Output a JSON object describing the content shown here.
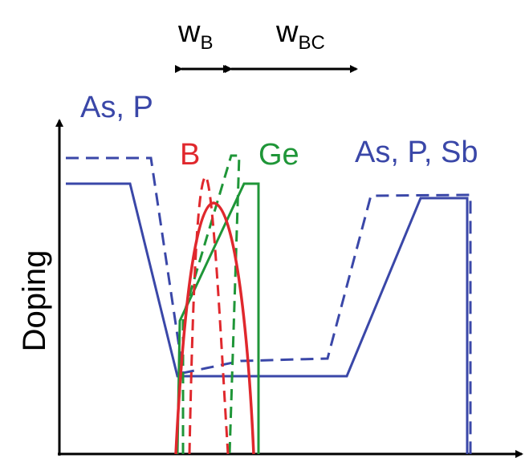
{
  "labels": {
    "wb_main": "w",
    "wb_sub": "B",
    "wbc_main": "w",
    "wbc_sub": "BC",
    "as_p": "As, P",
    "b": "B",
    "ge": "Ge",
    "as_p_sb": "As, P, Sb",
    "y_axis": "Doping"
  },
  "colors": {
    "blue": "#3a47a8",
    "red": "#e0282d",
    "green": "#1f9638",
    "black": "#000000"
  }
}
